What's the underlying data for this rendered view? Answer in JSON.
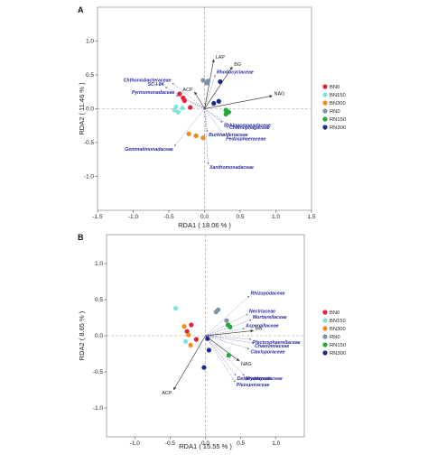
{
  "chart_data": [
    {
      "type": "scatter",
      "panel": "A",
      "xlabel": "RDA1 ( 18.06 % )",
      "ylabel": "RDA2 ( 11.46 % )",
      "xlim": [
        -1.5,
        1.5
      ],
      "ylim": [
        -1.5,
        1.5
      ],
      "xticks": [
        -1.5,
        -1.0,
        -0.5,
        0.0,
        0.5,
        1.0,
        1.5
      ],
      "yticks": [
        -1.0,
        -0.5,
        0.0,
        0.5,
        1.0
      ],
      "grid": false,
      "legend_position": "right",
      "series": [
        {
          "name": "BN0",
          "color": "#e0203c",
          "points": [
            [
              -0.35,
              0.22
            ],
            [
              -0.3,
              0.16
            ],
            [
              -0.2,
              0.02
            ],
            [
              -0.28,
              0.12
            ]
          ]
        },
        {
          "name": "BN150",
          "color": "#7fe3df",
          "points": [
            [
              -0.42,
              -0.02
            ],
            [
              -0.37,
              -0.05
            ],
            [
              -0.31,
              0.01
            ],
            [
              -0.4,
              0.03
            ]
          ]
        },
        {
          "name": "BN300",
          "color": "#f08a1c",
          "points": [
            [
              -0.22,
              -0.37
            ],
            [
              -0.12,
              -0.4
            ],
            [
              -0.02,
              -0.43
            ]
          ]
        },
        {
          "name": "RN0",
          "color": "#7a94aa",
          "points": [
            [
              -0.02,
              0.42
            ],
            [
              0.05,
              0.41
            ],
            [
              0.03,
              0.38
            ]
          ]
        },
        {
          "name": "RN150",
          "color": "#22a83a",
          "points": [
            [
              0.3,
              -0.02
            ],
            [
              0.34,
              -0.05
            ],
            [
              0.3,
              -0.08
            ]
          ]
        },
        {
          "name": "RN300",
          "color": "#1c2a8c",
          "points": [
            [
              0.13,
              0.08
            ],
            [
              0.2,
              0.11
            ],
            [
              0.22,
              0.4
            ]
          ]
        }
      ],
      "env_arrows": [
        {
          "label": "LAP",
          "x": 0.13,
          "y": 0.73
        },
        {
          "label": "BG",
          "x": 0.39,
          "y": 0.62
        },
        {
          "label": "NAG",
          "x": 0.95,
          "y": 0.19
        },
        {
          "label": "ACP",
          "x": -0.14,
          "y": 0.25
        }
      ],
      "species": [
        {
          "label": "Chthoniobacteraceae",
          "x": -0.45,
          "y": 0.38
        },
        {
          "label": "SC-I-84",
          "x": -0.55,
          "y": 0.32
        },
        {
          "label": "Pyrinomonadaceae",
          "x": -0.4,
          "y": 0.2
        },
        {
          "label": "Rhodocyclaceae",
          "x": 0.15,
          "y": 0.5
        },
        {
          "label": "Sphingomonadaceae",
          "x": 0.25,
          "y": -0.2
        },
        {
          "label": "Chitinophagaceae",
          "x": 0.33,
          "y": -0.23
        },
        {
          "label": "Burkholderiaceae",
          "x": 0.04,
          "y": -0.34
        },
        {
          "label": "Pedosphaeraceae",
          "x": 0.28,
          "y": -0.4
        },
        {
          "label": "Gemmatimonadaceae",
          "x": -0.42,
          "y": -0.55
        },
        {
          "label": "Xanthomonadaceae",
          "x": 0.05,
          "y": -0.82
        }
      ]
    },
    {
      "type": "scatter",
      "panel": "B",
      "xlabel": "RDA1 ( 15.55 % )",
      "ylabel": "RDA2 ( 8.65 % )",
      "xlim": [
        -1.4,
        1.4
      ],
      "ylim": [
        -1.4,
        1.4
      ],
      "xticks": [
        -1.0,
        -0.5,
        0.0,
        0.5,
        1.0
      ],
      "yticks": [
        -1.0,
        -0.5,
        0.0,
        0.5,
        1.0
      ],
      "grid": false,
      "legend_position": "right",
      "series": [
        {
          "name": "BN0",
          "color": "#e0203c",
          "points": [
            [
              -0.2,
              0.15
            ],
            [
              -0.26,
              0.06
            ],
            [
              -0.13,
              -0.05
            ]
          ]
        },
        {
          "name": "BN150",
          "color": "#7fe3df",
          "points": [
            [
              -0.42,
              0.38
            ],
            [
              -0.28,
              -0.08
            ]
          ]
        },
        {
          "name": "BN300",
          "color": "#f08a1c",
          "points": [
            [
              -0.3,
              0.13
            ],
            [
              -0.24,
              0.01
            ],
            [
              -0.21,
              -0.13
            ]
          ]
        },
        {
          "name": "RN0",
          "color": "#7a94aa",
          "points": [
            [
              0.15,
              0.33
            ],
            [
              0.18,
              0.36
            ],
            [
              0.3,
              0.21
            ]
          ]
        },
        {
          "name": "RN150",
          "color": "#22a83a",
          "points": [
            [
              0.32,
              0.15
            ],
            [
              0.35,
              0.12
            ],
            [
              0.33,
              -0.27
            ]
          ]
        },
        {
          "name": "RN300",
          "color": "#1c2a8c",
          "points": [
            [
              0.03,
              -0.04
            ],
            [
              0.05,
              -0.2
            ],
            [
              -0.02,
              -0.44
            ]
          ]
        }
      ],
      "env_arrows": [
        {
          "label": "BG",
          "x": 0.68,
          "y": 0.07
        },
        {
          "label": "NAG",
          "x": 0.48,
          "y": -0.35
        },
        {
          "label": "ACP",
          "x": -0.45,
          "y": -0.75
        }
      ],
      "species": [
        {
          "label": "Rhizopodaceae",
          "x": 0.62,
          "y": 0.55
        },
        {
          "label": "Nectriaceae",
          "x": 0.6,
          "y": 0.3
        },
        {
          "label": "Mortierellaceae",
          "x": 0.65,
          "y": 0.22
        },
        {
          "label": "Aspergillaceae",
          "x": 0.55,
          "y": 0.1
        },
        {
          "label": "Plectosphaerellaceae",
          "x": 0.65,
          "y": -0.05
        },
        {
          "label": "Chaetomiaceae",
          "x": 0.68,
          "y": -0.1
        },
        {
          "label": "Clavisporaceae",
          "x": 0.62,
          "y": -0.18
        },
        {
          "label": "Mrakiaceae",
          "x": 0.55,
          "y": -0.55
        },
        {
          "label": "Debaryomycetaceae",
          "x": 0.43,
          "y": -0.55
        },
        {
          "label": "Pleosporaceae",
          "x": 0.42,
          "y": -0.64
        }
      ]
    }
  ]
}
